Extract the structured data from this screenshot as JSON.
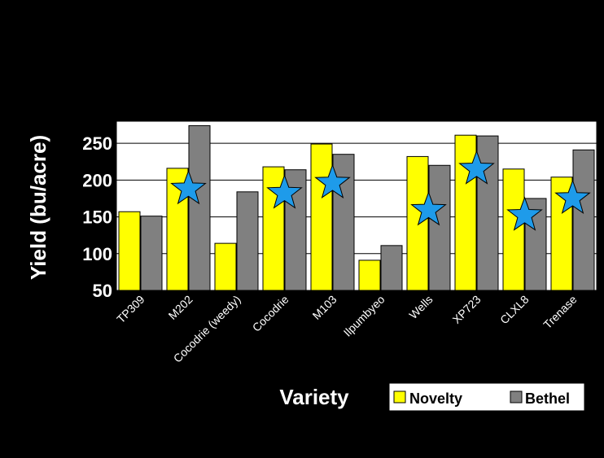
{
  "slide": {
    "background": "#000000"
  },
  "chart_data": {
    "type": "bar",
    "title": "",
    "xlabel": "Variety",
    "ylabel": "Yield (bu/acre)",
    "ylim": [
      50,
      280
    ],
    "yticks": [
      50,
      100,
      150,
      200,
      250
    ],
    "grid": true,
    "legend": {
      "position": "bottom-right"
    },
    "categories": [
      "TP309",
      "M202",
      "Cocodrie (weedy)",
      "Cocodrie",
      "M103",
      "Ilpumbyeo",
      "Wells",
      "XP723",
      "CLXL8",
      "Trenase"
    ],
    "series": [
      {
        "name": "Novelty",
        "color": "#FFFF00",
        "values": [
          157,
          216,
          114,
          218,
          249,
          91,
          232,
          261,
          215,
          204
        ]
      },
      {
        "name": "Bethel",
        "color": "#808080",
        "values": [
          151,
          274,
          184,
          214,
          235,
          111,
          220,
          260,
          175,
          241
        ]
      }
    ],
    "markers": {
      "shape": "star",
      "color": "#1E9BEA",
      "categories": [
        "M202",
        "Cocodrie",
        "M103",
        "Wells",
        "XP723",
        "CLXL8",
        "Trenase"
      ],
      "values": [
        188,
        182,
        196,
        159,
        215,
        152,
        175
      ]
    }
  }
}
